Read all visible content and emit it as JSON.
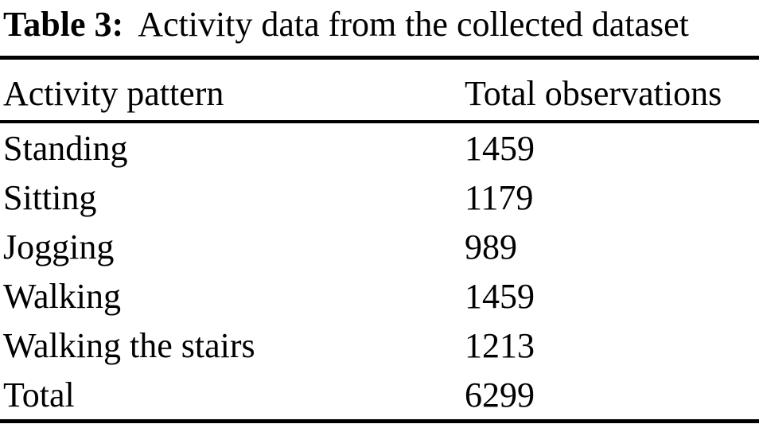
{
  "caption": {
    "label": "Table 3:",
    "text": "Activity data from the collected dataset"
  },
  "table": {
    "columns": {
      "activity": "Activity pattern",
      "observations": "Total observations"
    },
    "rows": [
      {
        "activity": "Standing",
        "observations": "1459"
      },
      {
        "activity": "Sitting",
        "observations": "1179"
      },
      {
        "activity": "Jogging",
        "observations": "989"
      },
      {
        "activity": "Walking",
        "observations": "1459"
      },
      {
        "activity": "Walking the stairs",
        "observations": "1213"
      },
      {
        "activity": "Total",
        "observations": "6299"
      }
    ]
  },
  "colors": {
    "text": "#000000",
    "background": "#ffffff",
    "rule": "#000000"
  }
}
